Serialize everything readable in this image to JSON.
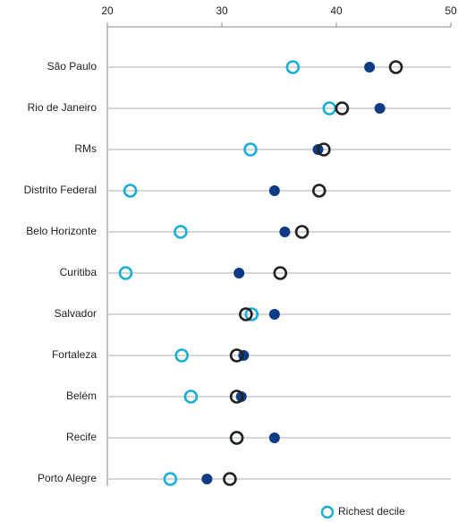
{
  "chart_data": {
    "type": "dot",
    "categories": [
      "São Paulo",
      "Rio de Janeiro",
      "RMs",
      "Distrito Federal",
      "Belo Horizonte",
      "Curitiba",
      "Salvador",
      "Fortaleza",
      "Belém",
      "Recife",
      "Porto Alegre"
    ],
    "xlim": [
      20,
      50
    ],
    "xticks": [
      20,
      30,
      40,
      50
    ],
    "grid": true,
    "series": [
      {
        "name": "Richest decile",
        "color": "#1aaed8",
        "filled": false,
        "values": [
          36.2,
          39.4,
          32.5,
          22.0,
          26.4,
          21.6,
          32.6,
          26.5,
          27.3,
          31.3,
          25.5
        ]
      },
      {
        "color": "#0d3b85",
        "filled": true,
        "values": [
          42.9,
          43.8,
          38.4,
          34.6,
          35.5,
          31.5,
          34.6,
          31.9,
          31.7,
          34.6,
          28.7
        ]
      },
      {
        "color": "#222222",
        "filled": false,
        "values": [
          45.2,
          40.5,
          38.9,
          38.5,
          37.0,
          35.1,
          32.1,
          31.3,
          31.3,
          31.3,
          30.7
        ]
      }
    ]
  }
}
